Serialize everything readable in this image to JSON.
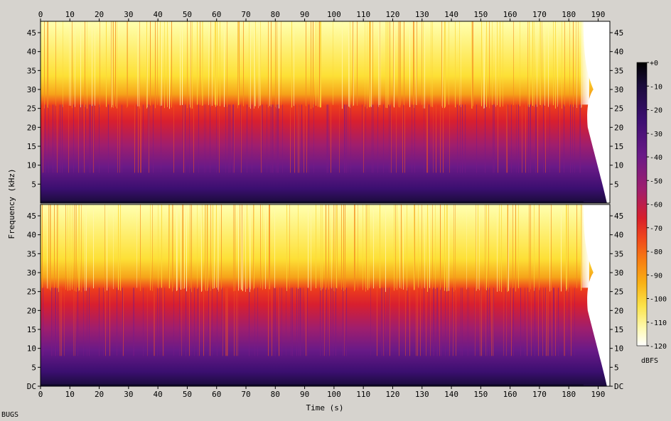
{
  "chart_data": {
    "type": "heatmap",
    "subtype": "spectrogram",
    "channels": 2,
    "xlabel": "Time (s)",
    "ylabel": "Frequency (kHz)",
    "x_ticks": [
      "0",
      "10",
      "20",
      "30",
      "40",
      "50",
      "60",
      "70",
      "80",
      "90",
      "100",
      "110",
      "120",
      "130",
      "140",
      "150",
      "160",
      "170",
      "180",
      "190"
    ],
    "x_tick_values": [
      0,
      10,
      20,
      30,
      40,
      50,
      60,
      70,
      80,
      90,
      100,
      110,
      120,
      130,
      140,
      150,
      160,
      170,
      180,
      190
    ],
    "xlim": [
      0,
      194
    ],
    "top_y_ticks": [
      "45",
      "40",
      "35",
      "30",
      "25",
      "20",
      "15",
      "10",
      "5"
    ],
    "bottom_y_ticks": [
      "45",
      "40",
      "35",
      "30",
      "25",
      "20",
      "15",
      "10",
      "5",
      "DC"
    ],
    "y_tick_values": [
      45,
      40,
      35,
      30,
      25,
      20,
      15,
      10,
      5
    ],
    "ylim_khz": [
      0,
      48
    ],
    "colorbar": {
      "label": "dBFS",
      "ticks": [
        "+0",
        "-10",
        "-20",
        "-30",
        "-40",
        "-50",
        "-60",
        "-70",
        "-80",
        "-90",
        "-100",
        "-110",
        "-120"
      ],
      "range_db": [
        -120,
        0
      ],
      "colormap": [
        "#000000",
        "#1a0c3a",
        "#3b0f70",
        "#6a1a87",
        "#a01e6d",
        "#d81f2b",
        "#f0471c",
        "#f77f12",
        "#f9b215",
        "#fbe34a",
        "#fffab4",
        "#ffffff"
      ]
    },
    "description_levels": {
      "content_cutoff_khz": 26,
      "signal_end_s": 185,
      "fade_end_s": 193
    },
    "footer": "BUGS"
  }
}
